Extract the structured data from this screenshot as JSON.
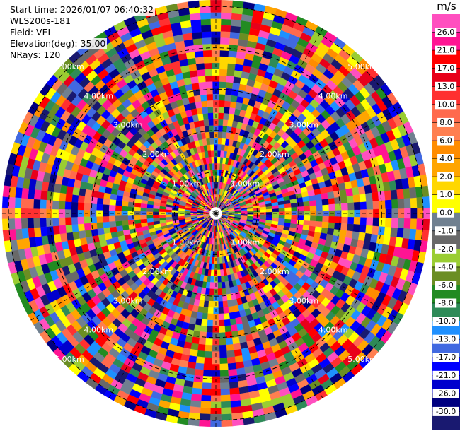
{
  "info": {
    "start_time": "Start time: 2026/01/07 06:40:32",
    "instrument": "WLS200s-181",
    "field": "Field: VEL",
    "elevation": "Elevation(deg): 35.00",
    "nrays": "NRays: 120"
  },
  "chart_data": {
    "type": "heatmap",
    "projection": "polar-ppi",
    "field": "VEL",
    "n_rays": 120,
    "elevation_deg": 35.0,
    "range_ring_labels": [
      "1.00km",
      "2.00km",
      "3.00km",
      "4.00km",
      "5.00km"
    ],
    "range_rings_km": [
      1,
      2,
      3,
      4,
      5
    ],
    "colorbar": {
      "unit": "m/s",
      "ticks": [
        "26.0",
        "21.0",
        "17.0",
        "13.0",
        "10.0",
        "8.0",
        "6.0",
        "4.0",
        "2.0",
        "1.0",
        "0.0",
        "-1.0",
        "-2.0",
        "-4.0",
        "-6.0",
        "-8.0",
        "-10.0",
        "-13.0",
        "-17.0",
        "-21.0",
        "-26.0",
        "-30.0"
      ],
      "colors": [
        "#ff4fbf",
        "#ff1493",
        "#ff0000",
        "#e8001a",
        "#ff3030",
        "#ff6a4d",
        "#ff7f50",
        "#ff8c00",
        "#ffa500",
        "#ffd700",
        "#ffff00",
        "#708090",
        "#696969",
        "#9acd32",
        "#6b8e23",
        "#228b22",
        "#2e8b57",
        "#1e90ff",
        "#4169e1",
        "#0000ff",
        "#0000cd",
        "#000080",
        "#191970"
      ]
    }
  }
}
